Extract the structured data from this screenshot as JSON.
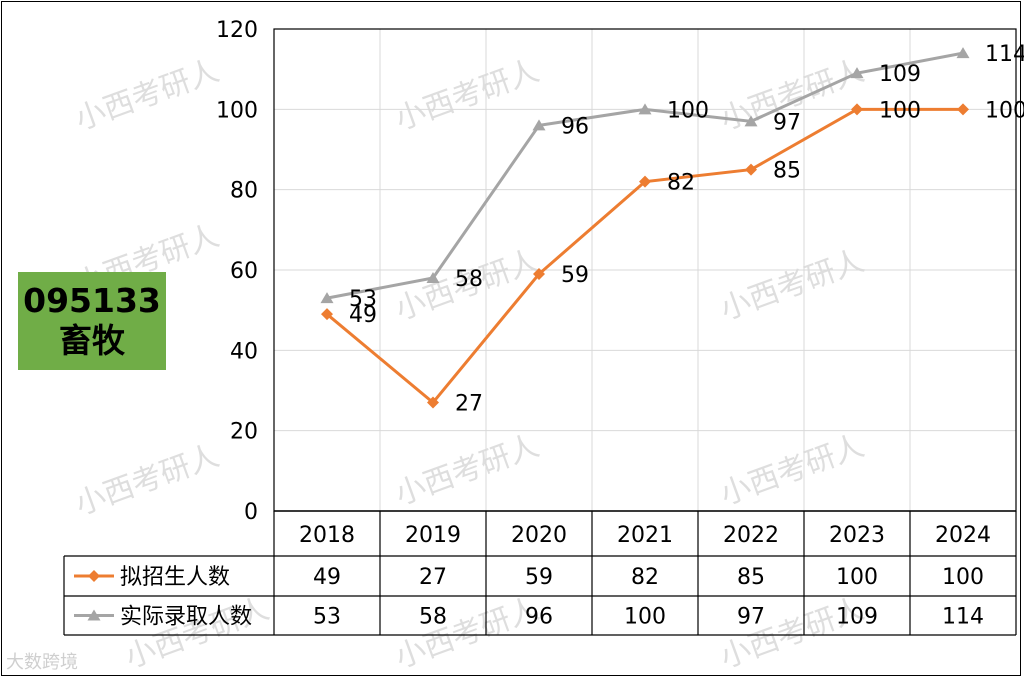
{
  "badge": {
    "code": "095133",
    "name": "畜牧"
  },
  "watermark_text": "小西考研人",
  "brand_text": "大数跨境",
  "chart_data": {
    "type": "line",
    "categories": [
      "2018",
      "2019",
      "2020",
      "2021",
      "2022",
      "2023",
      "2024"
    ],
    "ylim": [
      0,
      120
    ],
    "yticks": [
      0,
      20,
      40,
      60,
      80,
      100,
      120
    ],
    "grid": true,
    "series": [
      {
        "name": "实际录取人数",
        "values": [
          53,
          58,
          96,
          100,
          97,
          109,
          114
        ],
        "color": "#a5a5a5",
        "marker": "triangle"
      },
      {
        "name": "拟招生人数",
        "values": [
          49,
          27,
          59,
          82,
          85,
          100,
          100
        ],
        "color": "#ed7d31",
        "marker": "diamond"
      }
    ],
    "table": {
      "rows": [
        {
          "name": "拟招生人数",
          "values": [
            "49",
            "27",
            "59",
            "82",
            "85",
            "100",
            "100"
          ],
          "color": "#ed7d31",
          "marker": "diamond"
        },
        {
          "name": "实际录取人数",
          "values": [
            "53",
            "58",
            "96",
            "100",
            "97",
            "109",
            "114"
          ],
          "color": "#a5a5a5",
          "marker": "triangle"
        }
      ]
    }
  }
}
